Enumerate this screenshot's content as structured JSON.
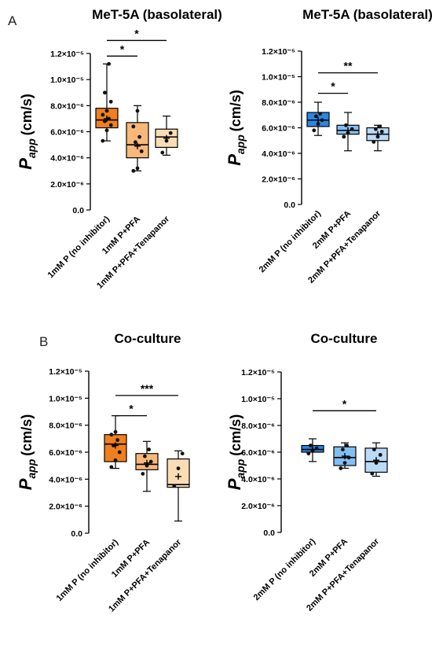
{
  "panel_labels": [
    "A",
    "B"
  ],
  "chart_data": [
    {
      "type": "box",
      "title": "MeT-5A (basolateral)",
      "ylabel": "P_app (cm/s)",
      "ylim": [
        0,
        1.2e-05
      ],
      "yticks": [
        "0.0",
        "2.0×10⁻⁶",
        "4.0×10⁻⁶",
        "6.0×10⁻⁶",
        "8.0×10⁻⁶",
        "1.0×10⁻⁵",
        "1.2×10⁻⁵"
      ],
      "categories": [
        "1mM P (no inhibitor)",
        "1mM P+PFA",
        "1mM P+PFA+Tenapanor"
      ],
      "colors": [
        "#F07F1E",
        "#F8B87A",
        "#FBDDB5"
      ],
      "boxes": [
        {
          "min": 5.3e-06,
          "q1": 6.3e-06,
          "median": 6.9e-06,
          "mean": 7e-06,
          "q3": 7.8e-06,
          "max": 1.12e-05,
          "points": [
            5.3e-06,
            6.1e-06,
            6.5e-06,
            6.8e-06,
            7e-06,
            7.3e-06,
            7.6e-06,
            8.3e-06,
            9e-06,
            1.12e-05
          ]
        },
        {
          "min": 3e-06,
          "q1": 4e-06,
          "median": 5e-06,
          "mean": 4.9e-06,
          "q3": 6.7e-06,
          "max": 8e-06,
          "points": [
            3e-06,
            3.2e-06,
            4.5e-06,
            5.2e-06,
            5.6e-06,
            6.4e-06,
            7.6e-06
          ]
        },
        {
          "min": 4.2e-06,
          "q1": 4.8e-06,
          "median": 5.6e-06,
          "mean": 5.5e-06,
          "q3": 6.2e-06,
          "max": 7.2e-06,
          "points": [
            4.4e-06,
            5.3e-06,
            5.9e-06
          ]
        }
      ],
      "significance": [
        {
          "from": 0,
          "to": 1,
          "y": 1.18e-05,
          "label": "*"
        },
        {
          "from": 0,
          "to": 2,
          "y": 1.3e-05,
          "label": "*"
        }
      ]
    },
    {
      "type": "box",
      "title": "MeT-5A (basolateral)",
      "ylabel": "P_app (cm/s)",
      "ylim": [
        0,
        1.2e-05
      ],
      "yticks": [
        "0.0",
        "2.0×10⁻⁶",
        "4.0×10⁻⁶",
        "6.0×10⁻⁶",
        "8.0×10⁻⁶",
        "1.0×10⁻⁵",
        "1.2×10⁻⁵"
      ],
      "categories": [
        "2mM P (no inhibitor)",
        "2mM P+PFA",
        "2mM P+PFA+Tenapanor"
      ],
      "colors": [
        "#2A86E6",
        "#83BEF0",
        "#BBDAF6"
      ],
      "boxes": [
        {
          "min": 5.4e-06,
          "q1": 6.1e-06,
          "median": 6.6e-06,
          "mean": 6.6e-06,
          "q3": 7.2e-06,
          "max": 8e-06,
          "points": [
            5.8e-06,
            6.3e-06,
            6.6e-06,
            6.9e-06,
            7.1e-06
          ]
        },
        {
          "min": 4.2e-06,
          "q1": 5.5e-06,
          "median": 5.8e-06,
          "mean": 5.8e-06,
          "q3": 6.2e-06,
          "max": 7.2e-06,
          "points": [
            5.3e-06,
            5.6e-06,
            5.9e-06,
            6.2e-06
          ]
        },
        {
          "min": 4.2e-06,
          "q1": 5e-06,
          "median": 5.5e-06,
          "mean": 5.5e-06,
          "q3": 6e-06,
          "max": 6.2e-06,
          "points": [
            4.9e-06,
            5.3e-06,
            5.7e-06,
            5.9e-06,
            6.1e-06
          ]
        }
      ],
      "significance": [
        {
          "from": 0,
          "to": 1,
          "y": 8.7e-06,
          "label": "*"
        },
        {
          "from": 0,
          "to": 2,
          "y": 1.03e-05,
          "label": "**"
        }
      ]
    },
    {
      "type": "box",
      "title": "Co-culture",
      "ylabel": "P_app (cm/s)",
      "ylim": [
        0,
        1.2e-05
      ],
      "yticks": [
        "0.0",
        "2.0×10⁻⁶",
        "4.0×10⁻⁶",
        "6.0×10⁻⁶",
        "8.0×10⁻⁶",
        "1.0×10⁻⁵",
        "1.2×10⁻⁵"
      ],
      "categories": [
        "1mM P (no inhibitor)",
        "1mM P+PFA",
        "1mM P+PFA+Tenapanor"
      ],
      "colors": [
        "#F07F1E",
        "#F8B87A",
        "#FBDDB5"
      ],
      "boxes": [
        {
          "min": 4.8e-06,
          "q1": 5.3e-06,
          "median": 6.6e-06,
          "mean": 6.5e-06,
          "q3": 7.3e-06,
          "max": 8.7e-06,
          "points": [
            4.9e-06,
            5.4e-06,
            6e-06,
            6.5e-06,
            6.9e-06,
            7.3e-06,
            7.5e-06
          ]
        },
        {
          "min": 3.1e-06,
          "q1": 4.7e-06,
          "median": 5.1e-06,
          "mean": 5.2e-06,
          "q3": 5.9e-06,
          "max": 6.8e-06,
          "points": [
            4.4e-06,
            5e-06,
            5.3e-06,
            5.7e-06,
            6.2e-06
          ]
        },
        {
          "min": 9e-07,
          "q1": 3.4e-06,
          "median": 3.6e-06,
          "mean": 4.2e-06,
          "q3": 5.5e-06,
          "max": 6.1e-06,
          "points": [
            3.5e-06,
            4.8e-06,
            5.9e-06
          ]
        }
      ],
      "significance": [
        {
          "from": 0,
          "to": 1,
          "y": 8.7e-06,
          "label": "*"
        },
        {
          "from": 0,
          "to": 2,
          "y": 1.02e-05,
          "label": "***"
        }
      ]
    },
    {
      "type": "box",
      "title": "Co-culture",
      "ylabel": "P_app (cm/s)",
      "ylim": [
        0,
        1.2e-05
      ],
      "yticks": [
        "0.0",
        "2.0×10⁻⁶",
        "4.0×10⁻⁶",
        "6.0×10⁻⁶",
        "8.0×10⁻⁶",
        "1.0×10⁻⁵",
        "1.2×10⁻⁵"
      ],
      "categories": [
        "2mM P (no inhibitor)",
        "2mM P+PFA",
        "2mM P+PFA+Tenapanor"
      ],
      "colors": [
        "#2A86E6",
        "#83BEF0",
        "#BBDAF6"
      ],
      "boxes": [
        {
          "min": 5.3e-06,
          "q1": 6e-06,
          "median": 6.2e-06,
          "mean": 6.2e-06,
          "q3": 6.5e-06,
          "max": 7e-06,
          "points": [
            5.9e-06,
            6.1e-06,
            6.3e-06,
            6.5e-06
          ]
        },
        {
          "min": 4.8e-06,
          "q1": 5e-06,
          "median": 5.6e-06,
          "mean": 5.7e-06,
          "q3": 6.4e-06,
          "max": 6.7e-06,
          "points": [
            4.8e-06,
            5.2e-06,
            5.6e-06,
            6.2e-06,
            6.5e-06
          ]
        },
        {
          "min": 4.2e-06,
          "q1": 4.5e-06,
          "median": 5.3e-06,
          "mean": 5.4e-06,
          "q3": 6.3e-06,
          "max": 6.7e-06,
          "points": [
            4.4e-06,
            5.2e-06,
            5.8e-06,
            6.2e-06
          ]
        }
      ],
      "significance": [
        {
          "from": 0,
          "to": 2,
          "y": 9.1e-06,
          "label": "*"
        }
      ]
    }
  ]
}
